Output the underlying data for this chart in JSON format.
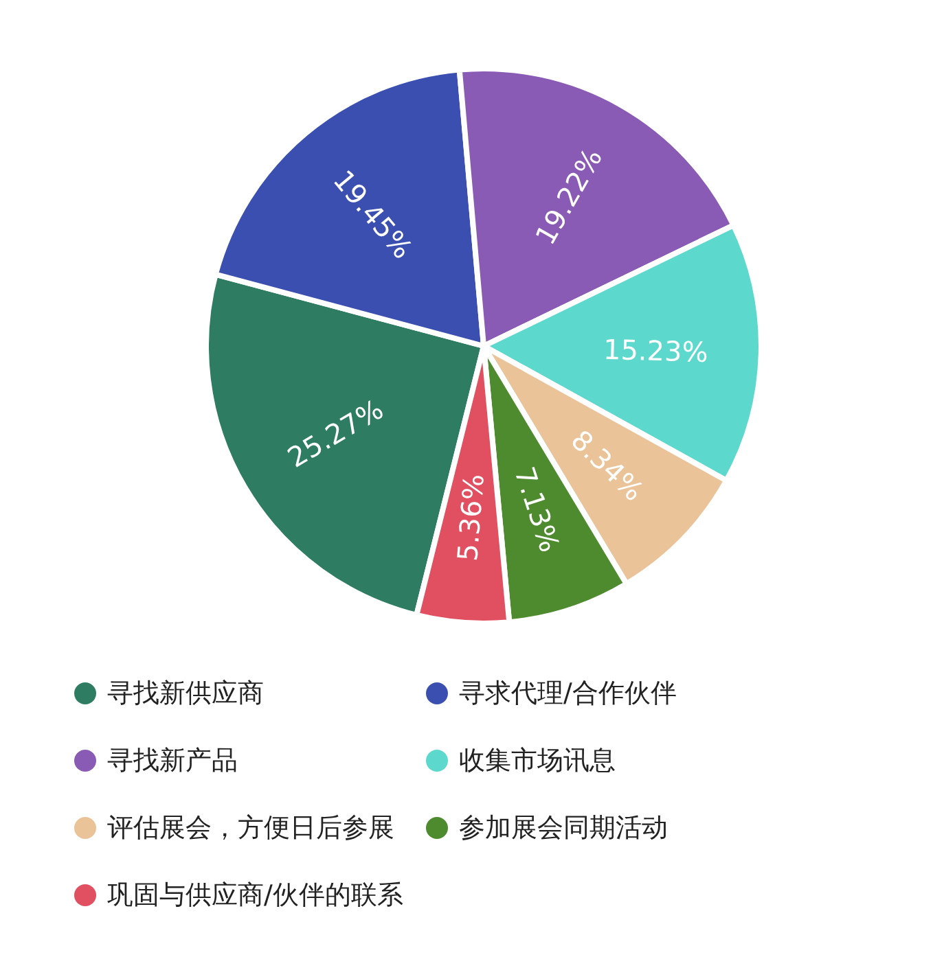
{
  "chart_data": {
    "type": "pie",
    "categories": [
      "寻找新供应商",
      "寻求代理/合作伙伴",
      "寻找新产品",
      "收集市场讯息",
      "评估展会，方便日后参展",
      "参加展会同期活动",
      "巩固与供应商/伙伴的联系"
    ],
    "values": [
      25.27,
      19.45,
      19.22,
      15.23,
      8.34,
      7.13,
      5.36
    ],
    "value_labels": [
      "25.27%",
      "19.45%",
      "19.22%",
      "15.23%",
      "8.34%",
      "7.13%",
      "5.36%"
    ],
    "colors": [
      "#2e7d62",
      "#3a4fb0",
      "#8a5bb5",
      "#5cd9cc",
      "#ebc398",
      "#4e8a2e",
      "#e05060"
    ],
    "legend": "bottom"
  }
}
